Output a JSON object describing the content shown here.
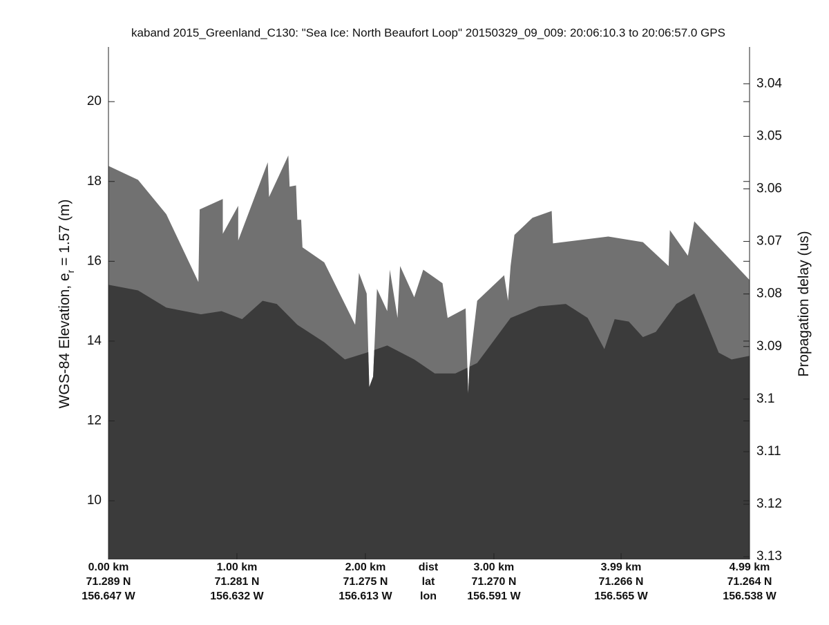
{
  "chart_data": {
    "type": "area",
    "title": "kaband 2015_Greenland_C130: \"Sea Ice: North Beaufort Loop\"  20150329_09_009: 20:06:10.3 to 20:06:57.0 GPS",
    "ylabel": {
      "prefix": "WGS-84 Elevation, e",
      "sub": "r",
      "suffix": " = 1.57 (m)"
    },
    "y2label": "Propagation delay (us)",
    "xlim": [
      0,
      4.99
    ],
    "xticks": [
      {
        "value": 0,
        "label": "0.00 km"
      },
      {
        "value": 1,
        "label": "1.00 km"
      },
      {
        "value": 2,
        "label": "2.00 km"
      },
      {
        "value": 3,
        "label": "3.00 km"
      },
      {
        "value": 3.99,
        "label": "3.99 km"
      },
      {
        "value": 4.99,
        "label": "4.99 km"
      }
    ],
    "lat_labels": [
      "71.289 N",
      "71.281 N",
      "71.275 N",
      "71.270 N",
      "71.266 N",
      "71.264 N"
    ],
    "lon_labels": [
      "156.647 W",
      "156.632 W",
      "156.613 W",
      "156.591 W",
      "156.565 W",
      "156.538 W"
    ],
    "row_labels": [
      "dist",
      "lat",
      "lon"
    ],
    "ylim": [
      8.53,
      21.37
    ],
    "yticks": [
      10,
      12,
      14,
      16,
      18,
      20
    ],
    "y2lim": [
      3.033,
      3.1305
    ],
    "y2_reversed": true,
    "y2ticks": [
      3.04,
      3.05,
      3.06,
      3.07,
      3.08,
      3.09,
      3.1,
      3.11,
      3.12,
      3.13
    ],
    "series": [
      {
        "color": "#717171",
        "x": [
          0,
          0.23,
          0.45,
          0.7,
          0.71,
          0.89,
          0.89,
          1.01,
          1.01,
          1.24,
          1.25,
          1.4,
          1.41,
          1.46,
          1.47,
          1.5,
          1.51,
          1.68,
          1.92,
          1.95,
          2.01,
          2.03,
          2.06,
          2.09,
          2.17,
          2.19,
          2.25,
          2.27,
          2.38,
          2.45,
          2.6,
          2.64,
          2.78,
          2.8,
          2.81,
          2.87,
          3.08,
          3.11,
          3.13,
          3.16,
          3.3,
          3.45,
          3.46,
          3.89,
          4.16,
          4.36,
          4.37,
          4.51,
          4.56,
          4.99
        ],
        "values": [
          18.39,
          18.04,
          17.18,
          15.48,
          17.3,
          17.56,
          16.69,
          17.39,
          16.52,
          18.48,
          17.61,
          18.65,
          17.87,
          17.9,
          17.04,
          17.04,
          16.35,
          15.97,
          14.41,
          15.71,
          15.19,
          12.85,
          13.11,
          15.31,
          14.75,
          15.79,
          14.58,
          15.88,
          15.1,
          15.79,
          15.45,
          14.58,
          14.82,
          12.68,
          13.37,
          15.01,
          15.65,
          15.01,
          15.88,
          16.66,
          17.09,
          17.26,
          16.45,
          16.62,
          16.48,
          15.88,
          16.78,
          16.14,
          17.0,
          15.53
        ]
      },
      {
        "color": "#3b3b3b",
        "x": [
          0,
          0.23,
          0.45,
          0.72,
          0.88,
          1.04,
          1.2,
          1.31,
          1.47,
          1.68,
          1.84,
          2.01,
          2.17,
          2.38,
          2.54,
          2.7,
          2.87,
          3.13,
          3.35,
          3.56,
          3.73,
          3.86,
          3.94,
          4.05,
          4.16,
          4.26,
          4.42,
          4.56,
          4.64,
          4.75,
          4.85,
          4.99
        ],
        "values": [
          15.41,
          15.27,
          14.84,
          14.67,
          14.75,
          14.55,
          15.01,
          14.93,
          14.41,
          13.97,
          13.54,
          13.71,
          13.89,
          13.54,
          13.19,
          13.19,
          13.45,
          14.58,
          14.87,
          14.93,
          14.58,
          13.8,
          14.55,
          14.49,
          14.1,
          14.23,
          14.93,
          15.19,
          14.58,
          13.71,
          13.54,
          13.63
        ]
      }
    ]
  }
}
